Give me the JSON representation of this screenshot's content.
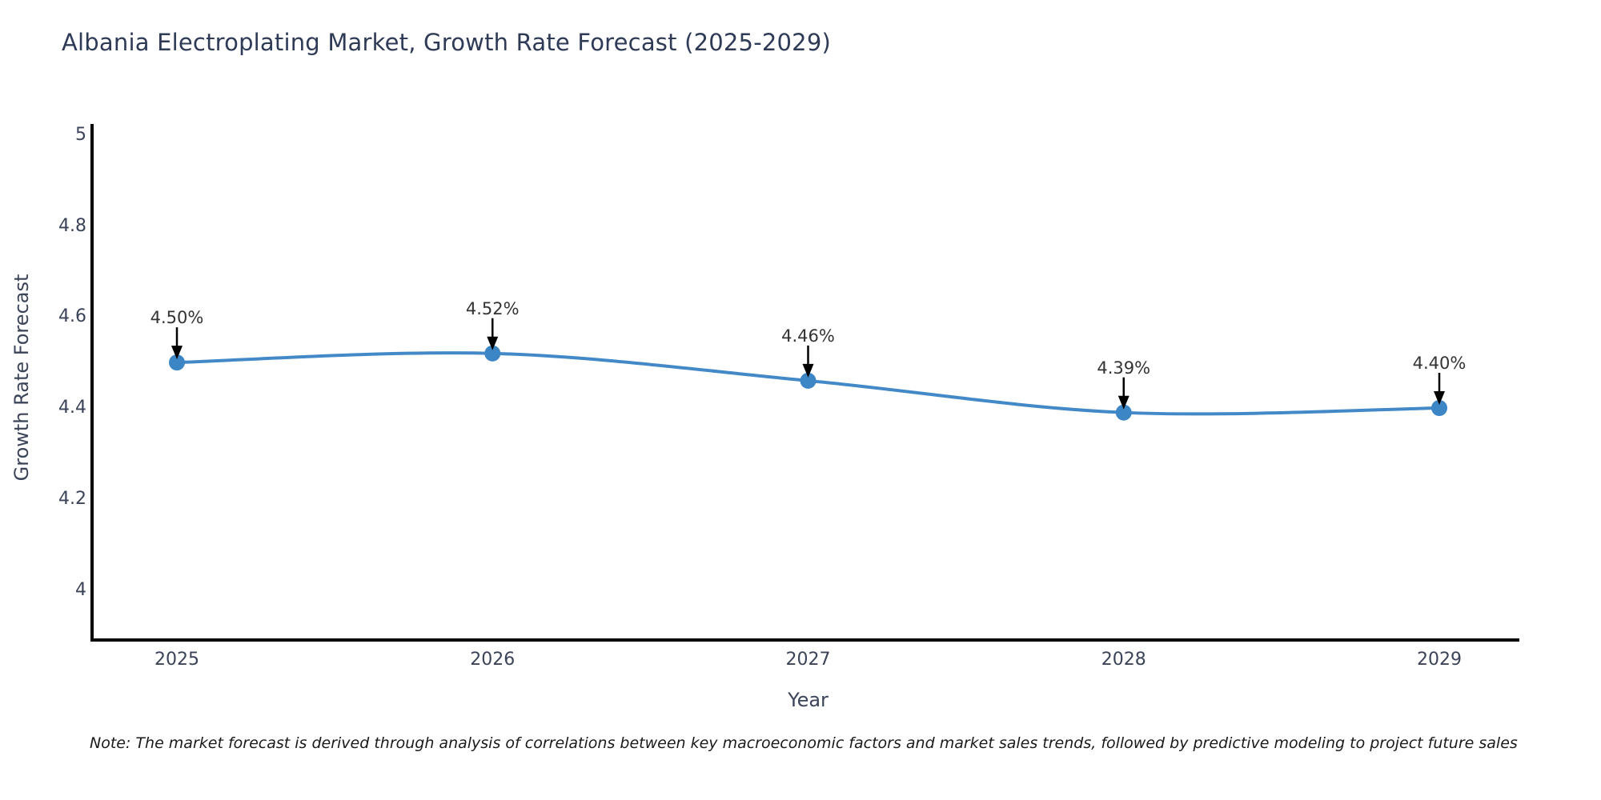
{
  "title": "Albania Electroplating Market, Growth Rate Forecast (2025-2029)",
  "note": "Note: The market forecast is derived through analysis of correlations between key macroeconomic factors and market sales trends, followed by predictive modeling to project future sales",
  "chart_data": {
    "type": "line",
    "x": [
      2025,
      2026,
      2027,
      2028,
      2029
    ],
    "xtick_labels": [
      "2025",
      "2026",
      "2027",
      "2028",
      "2029"
    ],
    "series": [
      {
        "name": "Growth Rate Forecast",
        "values": [
          4.5,
          4.52,
          4.46,
          4.39,
          4.4
        ]
      }
    ],
    "point_labels": [
      "4.50%",
      "4.52%",
      "4.46%",
      "4.39%",
      "4.40%"
    ],
    "title": "Albania Electroplating Market, Growth Rate Forecast (2025-2029)",
    "xlabel": "Year",
    "ylabel": "Growth Rate Forecast",
    "yticks": [
      4,
      4.2,
      4.4,
      4.6,
      4.8,
      5
    ],
    "ytick_labels": [
      "4",
      "4.2",
      "4.4",
      "4.6",
      "4.8",
      "5"
    ],
    "ylim": [
      3.89,
      5.02
    ],
    "grid": false,
    "legend": "none",
    "colors": {
      "line": "#4389c7",
      "marker": "#3d86c6",
      "annotation_arrow": "#000000",
      "spine": "#000000",
      "title_text": "#2e3a56",
      "axis_text": "#3b4358",
      "annotation_text": "#333333"
    }
  }
}
